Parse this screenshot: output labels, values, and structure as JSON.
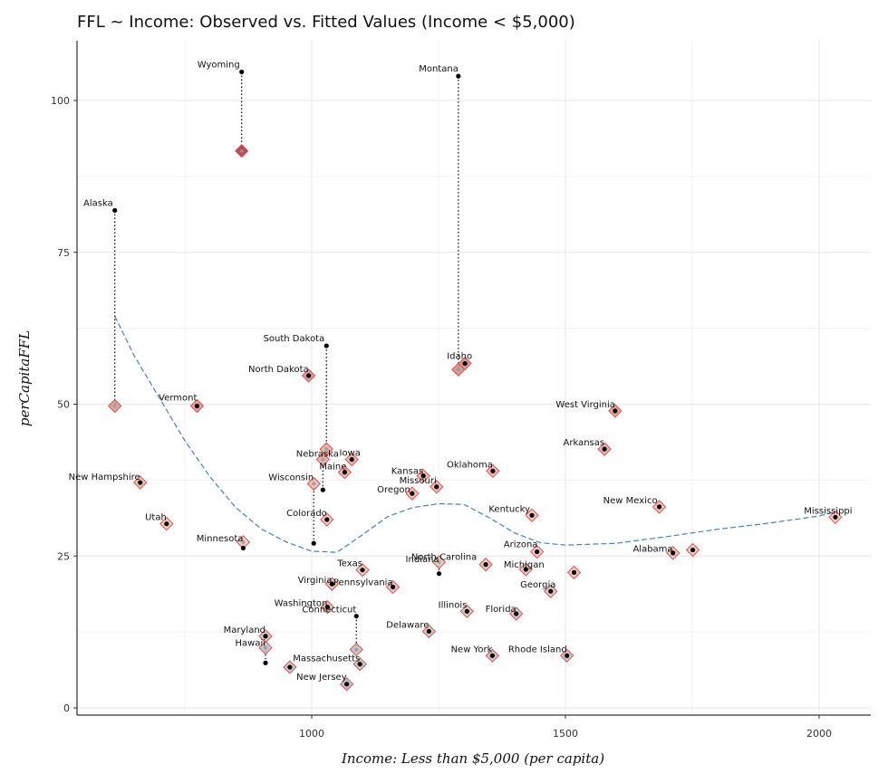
{
  "chart_data": {
    "type": "scatter",
    "title": "FFL ~ Income: Observed vs. Fitted Values (Income < $5,000)",
    "xlabel": "Income: Less than $5,000 (per capita)",
    "ylabel": "perCapitaFFL",
    "xlim": [
      525,
      2100
    ],
    "ylim": [
      -0.5,
      110
    ],
    "x_ticks": [
      1000,
      1500,
      2000
    ],
    "y_ticks": [
      0,
      25,
      50,
      75,
      100
    ],
    "grid": true,
    "colors": {
      "observed": "#000000",
      "fitted_low": "#a9b8c8",
      "fitted_high": "#9e1b32",
      "fitted_edge": "#d9534f",
      "trend": "#4682b4",
      "grid": "#e6e6e6"
    },
    "states": [
      {
        "name": "Wyoming",
        "x": 862,
        "observed": 104.7,
        "fitted": 91.7
      },
      {
        "name": "Montana",
        "x": 1289,
        "observed": 104.0,
        "fitted": 55.7
      },
      {
        "name": "Alaska",
        "x": 612,
        "observed": 81.9,
        "fitted": 49.7
      },
      {
        "name": "South Dakota",
        "x": 1029,
        "observed": 59.6,
        "fitted": 42.6
      },
      {
        "name": "North Dakota",
        "x": 994,
        "observed": 54.7,
        "fitted": 54.7
      },
      {
        "name": "Idaho",
        "x": 1302,
        "observed": 56.7,
        "fitted": 56.7
      },
      {
        "name": "Vermont",
        "x": 774,
        "observed": 49.7,
        "fitted": 49.7
      },
      {
        "name": "West Virginia",
        "x": 1598,
        "observed": 48.9,
        "fitted": 48.9
      },
      {
        "name": "Arkansas",
        "x": 1577,
        "observed": 42.6,
        "fitted": 42.6
      },
      {
        "name": "Iowa",
        "x": 1079,
        "observed": 40.9,
        "fitted": 40.9
      },
      {
        "name": "Maine",
        "x": 1065,
        "observed": 38.8,
        "fitted": 38.8
      },
      {
        "name": "Oklahoma",
        "x": 1357,
        "observed": 39.0,
        "fitted": 39.0
      },
      {
        "name": "Kansas",
        "x": 1220,
        "observed": 38.2,
        "fitted": 38.2
      },
      {
        "name": "Missouri",
        "x": 1246,
        "observed": 36.4,
        "fitted": 36.4
      },
      {
        "name": "Oregon",
        "x": 1198,
        "observed": 35.3,
        "fitted": 35.3
      },
      {
        "name": "Nebraska",
        "x": 1022,
        "observed": 35.9,
        "fitted": 40.9
      },
      {
        "name": "New Hampshire",
        "x": 662,
        "observed": 37.1,
        "fitted": 37.1
      },
      {
        "name": "Kentucky",
        "x": 1434,
        "observed": 31.7,
        "fitted": 31.7
      },
      {
        "name": "New Mexico",
        "x": 1685,
        "observed": 33.1,
        "fitted": 33.1
      },
      {
        "name": "Mississippi",
        "x": 2032,
        "observed": 31.4,
        "fitted": 31.4
      },
      {
        "name": "Colorado",
        "x": 1030,
        "observed": 31.0,
        "fitted": 31.0
      },
      {
        "name": "Utah",
        "x": 714,
        "observed": 30.3,
        "fitted": 30.3
      },
      {
        "name": "Wisconsin",
        "x": 1004,
        "observed": 27.1,
        "fitted": 36.9
      },
      {
        "name": "Minnesota",
        "x": 865,
        "observed": 26.3,
        "fitted": 27.3
      },
      {
        "name": "Arizona",
        "x": 1444,
        "observed": 25.7,
        "fitted": 25.7
      },
      {
        "name": "Alabama",
        "x": 1751,
        "observed": 26.0,
        "fitted": 26.0
      },
      {
        "name": "Alabama-2",
        "label": "",
        "x": 1712,
        "observed": 25.5,
        "fitted": 25.5
      },
      {
        "name": "North Carolina",
        "x": 1343,
        "observed": 23.6,
        "fitted": 23.6
      },
      {
        "name": "Texas",
        "x": 1100,
        "observed": 22.7,
        "fitted": 22.7
      },
      {
        "name": "Indiana",
        "x": 1251,
        "observed": 22.1,
        "fitted": 24.0
      },
      {
        "name": "Michigan",
        "x": 1422,
        "observed": 22.8,
        "fitted": 22.8
      },
      {
        "name": "Michigan-2",
        "label": "",
        "x": 1517,
        "observed": 22.3,
        "fitted": 22.3
      },
      {
        "name": "Georgia",
        "x": 1471,
        "observed": 19.2,
        "fitted": 19.2
      },
      {
        "name": "Virginia",
        "x": 1040,
        "observed": 20.4,
        "fitted": 20.4
      },
      {
        "name": "Pennsylvania",
        "x": 1160,
        "observed": 19.9,
        "fitted": 19.9
      },
      {
        "name": "Washington",
        "x": 1031,
        "observed": 16.6,
        "fitted": 16.6
      },
      {
        "name": "Connecticut",
        "x": 1088,
        "observed": 15.1,
        "fitted": 9.6
      },
      {
        "name": "Illinois",
        "x": 1306,
        "observed": 15.9,
        "fitted": 15.9
      },
      {
        "name": "Florida",
        "x": 1403,
        "observed": 15.5,
        "fitted": 15.5
      },
      {
        "name": "Delaware",
        "x": 1231,
        "observed": 12.6,
        "fitted": 12.6
      },
      {
        "name": "Maryland",
        "x": 909,
        "observed": 11.8,
        "fitted": 11.8
      },
      {
        "name": "Hawaii",
        "x": 909,
        "observed": 7.4,
        "fitted": 9.9
      },
      {
        "name": "New York",
        "x": 1356,
        "observed": 8.6,
        "fitted": 8.6
      },
      {
        "name": "Rhode Island",
        "x": 1503,
        "observed": 8.6,
        "fitted": 8.6
      },
      {
        "name": "Massachusetts",
        "x": 1095,
        "observed": 7.2,
        "fitted": 7.2
      },
      {
        "name": "New Jersey",
        "x": 1069,
        "observed": 3.9,
        "fitted": 3.9
      },
      {
        "name": "Hawaii-2",
        "label": "",
        "x": 957,
        "observed": 6.7,
        "fitted": 6.7
      }
    ],
    "trend": [
      [
        612,
        64.5
      ],
      [
        650,
        58
      ],
      [
        700,
        51
      ],
      [
        750,
        44
      ],
      [
        800,
        38
      ],
      [
        850,
        33
      ],
      [
        900,
        29.5
      ],
      [
        950,
        27.3
      ],
      [
        1000,
        25.8
      ],
      [
        1050,
        25.6
      ],
      [
        1100,
        28.5
      ],
      [
        1150,
        31.5
      ],
      [
        1200,
        33
      ],
      [
        1250,
        33.6
      ],
      [
        1300,
        33.5
      ],
      [
        1350,
        31.3
      ],
      [
        1400,
        28.8
      ],
      [
        1450,
        27.2
      ],
      [
        1500,
        26.8
      ],
      [
        1600,
        27.1
      ],
      [
        1700,
        28.2
      ],
      [
        1800,
        29.4
      ],
      [
        1900,
        30.4
      ],
      [
        2000,
        31.6
      ],
      [
        2030,
        32.2
      ]
    ]
  }
}
